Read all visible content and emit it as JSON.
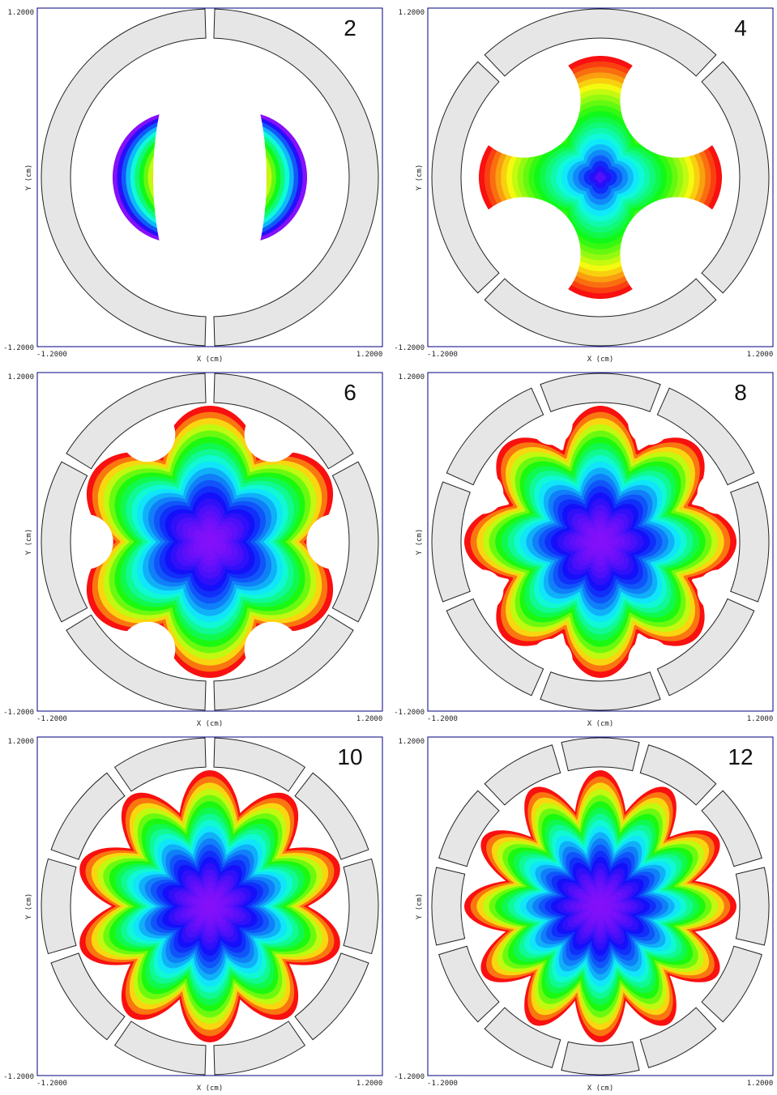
{
  "figure": {
    "panels": [
      {
        "label": "2",
        "poles": 2,
        "x_label": "X (cm)",
        "y_label": "Y (cm)",
        "x_min": "-1.2000",
        "x_max": "1.2000",
        "y_min": "-1.2000",
        "y_max": "1.2000"
      },
      {
        "label": "4",
        "poles": 4,
        "x_label": "X (cm)",
        "y_label": "Y (cm)",
        "x_min": "-1.2000",
        "x_max": "1.2000",
        "y_min": "-1.2000",
        "y_max": "1.2000"
      },
      {
        "label": "6",
        "poles": 6,
        "x_label": "X (cm)",
        "y_label": "Y (cm)",
        "x_min": "-1.2000",
        "x_max": "1.2000",
        "y_min": "-1.2000",
        "y_max": "1.2000"
      },
      {
        "label": "8",
        "poles": 8,
        "x_label": "X (cm)",
        "y_label": "Y (cm)",
        "x_min": "-1.2000",
        "x_max": "1.2000",
        "y_min": "-1.2000",
        "y_max": "1.2000"
      },
      {
        "label": "10",
        "poles": 10,
        "x_label": "X (cm)",
        "y_label": "Y (cm)",
        "x_min": "-1.2000",
        "x_max": "1.2000",
        "y_min": "-1.2000",
        "y_max": "1.2000"
      },
      {
        "label": "12",
        "poles": 12,
        "x_label": "X (cm)",
        "y_label": "Y (cm)",
        "x_min": "-1.2000",
        "x_max": "1.2000",
        "y_min": "-1.2000",
        "y_max": "1.2000"
      }
    ],
    "colors": {
      "frame": "#000080",
      "electrode_fill": "#e6e6e6",
      "electrode_stroke": "#222222",
      "background": "#ffffff"
    }
  }
}
